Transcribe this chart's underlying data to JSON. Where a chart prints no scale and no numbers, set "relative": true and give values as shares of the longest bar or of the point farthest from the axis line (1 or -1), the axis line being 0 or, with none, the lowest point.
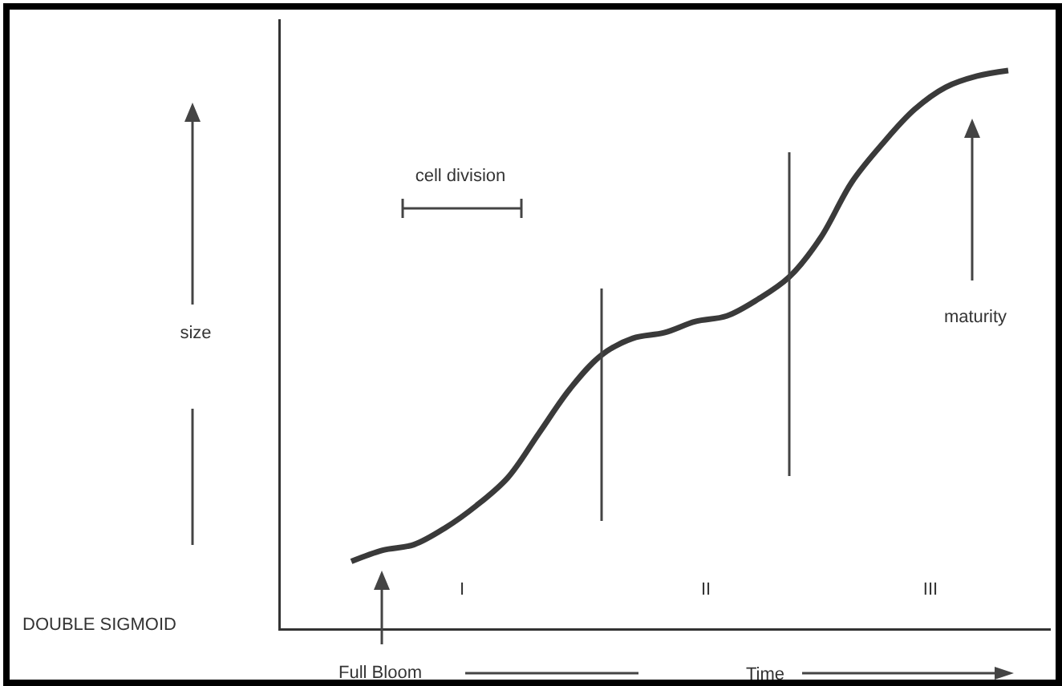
{
  "chart_data": {
    "type": "line",
    "relative": true,
    "xlabel": "Time",
    "color": "#3a3a3a",
    "line_style": "solid",
    "categories": [
      null,
      null,
      null,
      null,
      null,
      null,
      null,
      null,
      null,
      null,
      null,
      null,
      null,
      null,
      null,
      null,
      null,
      null,
      null,
      null,
      null,
      null
    ],
    "values": [
      0.12,
      0.14,
      0.15,
      0.18,
      0.22,
      0.27,
      0.35,
      0.43,
      0.49,
      0.52,
      0.53,
      0.55,
      0.56,
      0.59,
      0.63,
      0.7,
      0.8,
      0.87,
      0.93,
      0.97,
      0.99,
      1
    ],
    "annotations": [
      "size",
      "DOUBLE SIGMOID",
      "cell division",
      "maturity",
      "Full Bloom",
      "I",
      "II",
      "III"
    ]
  }
}
